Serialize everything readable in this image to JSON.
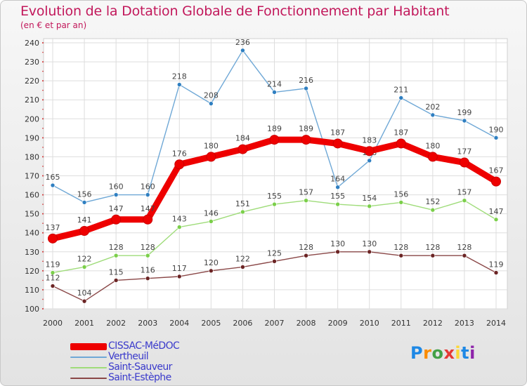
{
  "title": "Evolution de la Dotation Globale de Fonctionnement par Habitant",
  "subtitle": "(en € et par an)",
  "logo": {
    "text": "Proxiti",
    "letters": [
      "P",
      "r",
      "o",
      "x",
      "i",
      "t",
      "i"
    ],
    "colors": [
      "#1e88e5",
      "#fb8c00",
      "#43a047",
      "#e53935",
      "#fdd835",
      "#1e88e5",
      "#8e24aa"
    ]
  },
  "chart_data": {
    "type": "line",
    "x": [
      "2000",
      "2001",
      "2002",
      "2003",
      "2004",
      "2005",
      "2006",
      "2007",
      "2008",
      "2009",
      "2010",
      "2011",
      "2012",
      "2013",
      "2014"
    ],
    "ylim": [
      100,
      240
    ],
    "yticks": [
      100,
      110,
      120,
      130,
      140,
      150,
      160,
      170,
      180,
      190,
      200,
      210,
      220,
      230,
      240
    ],
    "grid": true,
    "legend_position": "bottom-left",
    "series": [
      {
        "name": "Vertheuil",
        "color": "#6fa8d6",
        "point_color": "#2f7fc1",
        "values": [
          165,
          156,
          160,
          160,
          218,
          208,
          236,
          214,
          216,
          164,
          178,
          211,
          202,
          199,
          190
        ]
      },
      {
        "name": "Saint-Sauveur",
        "color": "#9fdc7a",
        "point_color": "#7bcf4a",
        "values": [
          119,
          122,
          128,
          128,
          143,
          146,
          151,
          155,
          157,
          155,
          154,
          156,
          152,
          157,
          147
        ]
      },
      {
        "name": "Saint-Estèphe",
        "color": "#8a4747",
        "point_color": "#6b2424",
        "values": [
          112,
          104,
          115,
          116,
          117,
          120,
          122,
          125,
          128,
          130,
          130,
          128,
          128,
          128,
          119
        ]
      },
      {
        "name": "CISSAC-MéDOC",
        "color": "#ee0000",
        "point_color": "#ee0000",
        "values": [
          137,
          141,
          147,
          147,
          176,
          180,
          184,
          189,
          189,
          187,
          183,
          187,
          180,
          177,
          167
        ]
      }
    ]
  },
  "legend": {
    "items": [
      {
        "label": "CISSAC-MéDOC",
        "color": "#ee0000",
        "thickness": 10
      },
      {
        "label": "Vertheuil",
        "color": "#6fa8d6",
        "thickness": 2
      },
      {
        "label": "Saint-Sauveur",
        "color": "#9fdc7a",
        "thickness": 2
      },
      {
        "label": "Saint-Estèphe",
        "color": "#8a4747",
        "thickness": 2
      }
    ]
  }
}
